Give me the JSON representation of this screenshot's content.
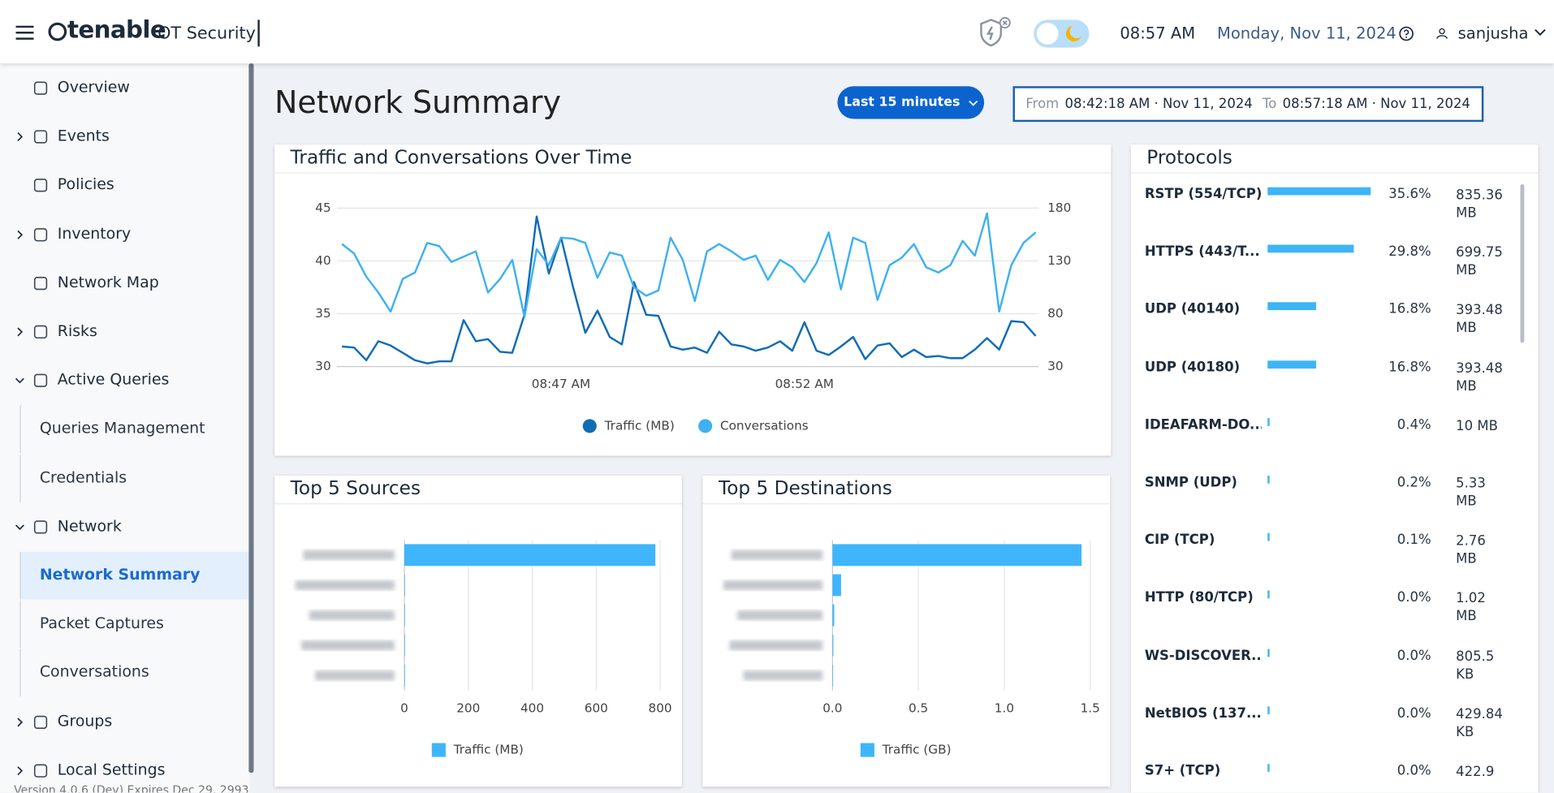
{
  "header": {
    "brand": "tenable",
    "product": "OT Security",
    "time": "08:57 AM",
    "date": "Monday, Nov 11, 2024",
    "user": "sanjusha"
  },
  "sidebar": {
    "items": [
      {
        "label": "Overview",
        "level": 1
      },
      {
        "label": "Events",
        "level": 1,
        "expanded": false
      },
      {
        "label": "Policies",
        "level": 1
      },
      {
        "label": "Inventory",
        "level": 1,
        "expanded": false
      },
      {
        "label": "Network Map",
        "level": 1
      },
      {
        "label": "Risks",
        "level": 1,
        "expanded": false
      },
      {
        "label": "Active Queries",
        "level": 1,
        "expanded": true
      },
      {
        "label": "Queries Management",
        "level": 2
      },
      {
        "label": "Credentials",
        "level": 2
      },
      {
        "label": "Network",
        "level": 1,
        "expanded": true
      },
      {
        "label": "Network Summary",
        "level": 2,
        "active": true
      },
      {
        "label": "Packet Captures",
        "level": 2
      },
      {
        "label": "Conversations",
        "level": 2
      },
      {
        "label": "Groups",
        "level": 1,
        "expanded": false
      },
      {
        "label": "Local Settings",
        "level": 1,
        "expanded": false
      }
    ],
    "version": "Version 4.0.6 (Dev) Expires Dec 29, 2993"
  },
  "page": {
    "title": "Network Summary",
    "range_button": "Last 15 minutes",
    "from_label": "From",
    "from": "08:42:18 AM · Nov 11, 2024",
    "to_label": "To",
    "to": "08:57:18 AM · Nov 11, 2024"
  },
  "chart_data": [
    {
      "type": "line",
      "title": "Traffic and Conversations Over Time",
      "categories": [
        null,
        null,
        null,
        null,
        null,
        null,
        null,
        null,
        null,
        null,
        null,
        null,
        null,
        null,
        null,
        null,
        null,
        null,
        "08:47 AM",
        null,
        null,
        null,
        null,
        null,
        null,
        null,
        null,
        null,
        null,
        null,
        null,
        null,
        null,
        null,
        null,
        null,
        null,
        null,
        "08:52 AM",
        null,
        null,
        null,
        null,
        null,
        null,
        null,
        null,
        null,
        null,
        null,
        null,
        null,
        null,
        null,
        null,
        null,
        null,
        null
      ],
      "series": [
        {
          "name": "Traffic (MB)",
          "color": "#0f6cb6",
          "values": [
            31.9,
            31.8,
            30.6,
            32.4,
            32.0,
            31.3,
            30.6,
            30.3,
            30.5,
            30.5,
            34.4,
            32.4,
            32.6,
            31.4,
            31.3,
            34.9,
            44.2,
            38.8,
            42.2,
            37.5,
            33.2,
            35.3,
            32.8,
            32.1,
            38.0,
            34.9,
            34.8,
            31.9,
            31.6,
            31.8,
            31.3,
            33.3,
            32.1,
            31.9,
            31.5,
            31.8,
            32.4,
            31.5,
            34.2,
            31.5,
            31.1,
            31.9,
            32.8,
            30.7,
            32.0,
            32.2,
            30.9,
            31.6,
            30.9,
            31.0,
            30.8,
            30.8,
            31.6,
            32.7,
            31.6,
            34.3,
            34.2,
            32.9
          ]
        },
        {
          "name": "Conversations",
          "color": "#3eb1f2",
          "axis": "y2",
          "values": [
            146,
            137,
            115,
            100,
            82,
            113,
            119,
            147,
            144,
            129,
            134,
            139,
            100,
            113,
            131,
            77,
            141,
            126,
            152,
            151,
            147,
            114,
            138,
            135,
            105,
            97,
            102,
            152,
            131,
            92,
            139,
            146,
            139,
            131,
            135,
            112,
            131,
            124,
            110,
            128,
            157,
            103,
            152,
            147,
            93,
            126,
            133,
            146,
            124,
            119,
            126,
            149,
            135,
            175,
            82,
            126,
            147,
            157
          ]
        }
      ],
      "ylim": [
        30,
        45
      ],
      "yticks": [
        30,
        35,
        40,
        45
      ],
      "y2lim": [
        30,
        180
      ],
      "y2ticks": [
        30,
        80,
        130,
        180
      ],
      "grid": true,
      "legend": "bottom"
    },
    {
      "type": "bar",
      "horizontal": true,
      "title": "Top 5 Sources",
      "categories": [
        null,
        null,
        null,
        null,
        null
      ],
      "series": [
        {
          "name": "Traffic (MB)",
          "color": "#3fb6fb",
          "values": [
            785,
            1.5,
            1,
            0.8,
            0.5
          ]
        }
      ],
      "xlim": [
        0,
        840
      ],
      "xticks": [
        0,
        200,
        400,
        600,
        800
      ],
      "grid": true,
      "legend": "bottom"
    },
    {
      "type": "bar",
      "horizontal": true,
      "title": "Top 5 Destinations",
      "categories": [
        null,
        null,
        null,
        null,
        null
      ],
      "series": [
        {
          "name": "Traffic (GB)",
          "color": "#3fb6fb",
          "values": [
            1.45,
            0.05,
            0.01,
            0.005,
            0.003
          ]
        }
      ],
      "xlim": [
        0,
        1.5
      ],
      "xticks": [
        {
          "value": 0,
          "label": "0.0"
        },
        0.5,
        {
          "value": 1,
          "label": "1.0"
        },
        1.5
      ],
      "grid": true,
      "legend": "bottom"
    }
  ],
  "protocols": {
    "title": "Protocols",
    "color": "#3db5f7",
    "names": [
      "RSTP (554/TCP)",
      "HTTPS (443/T...",
      "UDP (40140)",
      "UDP (40180)",
      "IDEAFARM-DO...",
      "SNMP (UDP)",
      "CIP (TCP)",
      "HTTP (80/TCP)",
      "WS-DISCOVER...",
      "NetBIOS (137...",
      "S7+ (TCP)"
    ],
    "values": [
      35.6,
      29.8,
      16.8,
      16.8,
      0.4,
      0.2,
      0.1,
      0.0,
      0.0,
      0.0,
      0.0
    ],
    "value_labels": [
      "35.6%",
      "29.8%",
      "16.8%",
      "16.8%",
      "0.4%",
      "0.2%",
      "0.1%",
      "0.0%",
      "0.0%",
      "0.0%",
      "0.0%"
    ],
    "sizes": [
      "835.36 MB",
      "699.75 MB",
      "393.48 MB",
      "393.48 MB",
      "10 MB",
      "5.33 MB",
      "2.76 MB",
      "1.02 MB",
      "805.5 KB",
      "429.84 KB",
      "422.9"
    ]
  }
}
